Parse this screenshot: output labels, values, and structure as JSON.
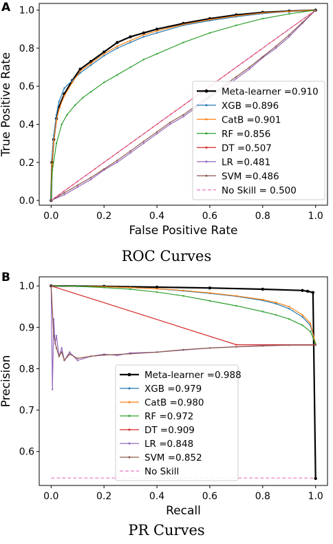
{
  "panels": [
    {
      "letter": "A",
      "caption": "ROC Curves"
    },
    {
      "letter": "B",
      "caption": "PR Curves"
    }
  ],
  "chart_data": [
    {
      "type": "line",
      "xlabel": "False Positive Rate",
      "ylabel": "True Positive Rate",
      "xlim": [
        0,
        1
      ],
      "ylim": [
        0,
        1
      ],
      "xticks": [
        "0.0",
        "0.2",
        "0.4",
        "0.6",
        "0.8",
        "1.0"
      ],
      "yticks": [
        "0.0",
        "0.2",
        "0.4",
        "0.6",
        "0.8",
        "1.0"
      ],
      "grid": false,
      "legend_position": "lower-right",
      "series": [
        {
          "name": "Meta-learner =0.910",
          "color": "#000000",
          "marker": "dot",
          "x": [
            0,
            0.003,
            0.01,
            0.02,
            0.03,
            0.05,
            0.08,
            0.11,
            0.15,
            0.2,
            0.25,
            0.3,
            0.35,
            0.4,
            0.5,
            0.6,
            0.7,
            0.8,
            0.9,
            1.0
          ],
          "y": [
            0,
            0.2,
            0.32,
            0.43,
            0.49,
            0.56,
            0.63,
            0.69,
            0.73,
            0.78,
            0.83,
            0.86,
            0.88,
            0.9,
            0.93,
            0.955,
            0.975,
            0.988,
            0.995,
            1.0
          ]
        },
        {
          "name": "XGB =0.896",
          "color": "#1f77b4",
          "marker": "dot",
          "x": [
            0,
            0.003,
            0.01,
            0.02,
            0.03,
            0.05,
            0.08,
            0.11,
            0.15,
            0.2,
            0.25,
            0.3,
            0.35,
            0.4,
            0.5,
            0.6,
            0.7,
            0.8,
            0.9,
            1.0
          ],
          "y": [
            0,
            0.22,
            0.34,
            0.45,
            0.52,
            0.59,
            0.63,
            0.67,
            0.71,
            0.76,
            0.8,
            0.83,
            0.86,
            0.88,
            0.92,
            0.945,
            0.965,
            0.982,
            0.993,
            1.0
          ]
        },
        {
          "name": "CatB =0.901",
          "color": "#ff7f0e",
          "marker": "dot",
          "x": [
            0,
            0.003,
            0.01,
            0.02,
            0.03,
            0.05,
            0.08,
            0.11,
            0.15,
            0.2,
            0.25,
            0.3,
            0.35,
            0.4,
            0.5,
            0.6,
            0.7,
            0.8,
            0.9,
            1.0
          ],
          "y": [
            0,
            0.19,
            0.31,
            0.42,
            0.48,
            0.55,
            0.62,
            0.68,
            0.72,
            0.77,
            0.81,
            0.84,
            0.87,
            0.89,
            0.925,
            0.95,
            0.97,
            0.985,
            0.994,
            1.0
          ]
        },
        {
          "name": "RF =0.856",
          "color": "#2ca02c",
          "marker": "dot",
          "x": [
            0,
            0.005,
            0.02,
            0.04,
            0.06,
            0.09,
            0.12,
            0.15,
            0.2,
            0.25,
            0.3,
            0.35,
            0.4,
            0.5,
            0.6,
            0.7,
            0.8,
            0.9,
            1.0
          ],
          "y": [
            0,
            0.16,
            0.3,
            0.4,
            0.45,
            0.5,
            0.54,
            0.57,
            0.62,
            0.66,
            0.7,
            0.74,
            0.77,
            0.83,
            0.88,
            0.92,
            0.955,
            0.98,
            1.0
          ]
        },
        {
          "name": "DT =0.507",
          "color": "#d62728",
          "marker": "dot",
          "x": [
            0,
            1.0
          ],
          "y": [
            0,
            1.0
          ]
        },
        {
          "name": "LR =0.481",
          "color": "#9467bd",
          "marker": "dot",
          "x": [
            0,
            0.05,
            0.1,
            0.15,
            0.2,
            0.25,
            0.3,
            0.35,
            0.4,
            0.45,
            0.5,
            0.55,
            0.6,
            0.65,
            0.7,
            0.75,
            0.8,
            0.85,
            0.9,
            0.95,
            1.0
          ],
          "y": [
            0,
            0.03,
            0.07,
            0.11,
            0.16,
            0.2,
            0.25,
            0.3,
            0.35,
            0.4,
            0.44,
            0.49,
            0.54,
            0.59,
            0.64,
            0.69,
            0.75,
            0.8,
            0.86,
            0.93,
            1.0
          ]
        },
        {
          "name": "SVM =0.486",
          "color": "#8c564b",
          "marker": "dot",
          "x": [
            0,
            0.05,
            0.1,
            0.15,
            0.2,
            0.25,
            0.3,
            0.35,
            0.4,
            0.45,
            0.5,
            0.55,
            0.6,
            0.65,
            0.7,
            0.75,
            0.8,
            0.85,
            0.9,
            0.95,
            1.0
          ],
          "y": [
            0,
            0.04,
            0.08,
            0.12,
            0.165,
            0.21,
            0.26,
            0.31,
            0.36,
            0.41,
            0.45,
            0.5,
            0.55,
            0.6,
            0.65,
            0.7,
            0.755,
            0.81,
            0.87,
            0.935,
            1.0
          ]
        },
        {
          "name": "No Skill = 0.500",
          "color": "#e377c2",
          "marker": "none",
          "dashed": true,
          "x": [
            0,
            1.0
          ],
          "y": [
            0,
            1.0
          ]
        }
      ]
    },
    {
      "type": "line",
      "xlabel": "Recall",
      "ylabel": "Precision",
      "xlim": [
        0,
        1
      ],
      "ylim": [
        0.52,
        1.02
      ],
      "xticks": [
        "0.0",
        "0.2",
        "0.4",
        "0.6",
        "0.8",
        "1.0"
      ],
      "yticks": [
        "0.6",
        "0.7",
        "0.8",
        "0.9",
        "1.0"
      ],
      "grid": false,
      "legend_position": "lower-center",
      "series": [
        {
          "name": "Meta-learner =0.988",
          "color": "#000000",
          "marker": "dot",
          "x": [
            0,
            0.2,
            0.4,
            0.6,
            0.8,
            0.95,
            0.97,
            0.99,
            1.0
          ],
          "y": [
            1.0,
            0.999,
            0.997,
            0.995,
            0.992,
            0.989,
            0.987,
            0.984,
            0.535
          ]
        },
        {
          "name": "XGB =0.979",
          "color": "#1f77b4",
          "marker": "dot",
          "x": [
            0,
            0.1,
            0.2,
            0.3,
            0.4,
            0.5,
            0.6,
            0.7,
            0.8,
            0.85,
            0.9,
            0.95,
            0.98,
            1.0
          ],
          "y": [
            1.0,
            0.999,
            0.998,
            0.996,
            0.993,
            0.988,
            0.982,
            0.975,
            0.965,
            0.957,
            0.945,
            0.925,
            0.905,
            0.86
          ]
        },
        {
          "name": "CatB =0.980",
          "color": "#ff7f0e",
          "marker": "dot",
          "x": [
            0,
            0.1,
            0.2,
            0.3,
            0.4,
            0.5,
            0.6,
            0.7,
            0.8,
            0.85,
            0.9,
            0.95,
            0.98,
            1.0
          ],
          "y": [
            1.0,
            0.999,
            0.998,
            0.996,
            0.993,
            0.989,
            0.983,
            0.976,
            0.967,
            0.96,
            0.95,
            0.93,
            0.91,
            0.86
          ]
        },
        {
          "name": "RF =0.972",
          "color": "#2ca02c",
          "marker": "dot",
          "x": [
            0,
            0.1,
            0.2,
            0.3,
            0.4,
            0.5,
            0.6,
            0.7,
            0.8,
            0.85,
            0.9,
            0.95,
            0.98,
            1.0
          ],
          "y": [
            1.0,
            0.999,
            0.996,
            0.992,
            0.985,
            0.976,
            0.964,
            0.952,
            0.938,
            0.93,
            0.92,
            0.905,
            0.89,
            0.86
          ]
        },
        {
          "name": "DT =0.909",
          "color": "#d62728",
          "marker": "dot",
          "x": [
            0,
            0.7,
            1.0
          ],
          "y": [
            1.0,
            0.858,
            0.858
          ]
        },
        {
          "name": "LR =0.848",
          "color": "#9467bd",
          "marker": "dot",
          "x": [
            0,
            0.005,
            0.01,
            0.015,
            0.02,
            0.03,
            0.04,
            0.05,
            0.07,
            0.1,
            0.15,
            0.2,
            0.25,
            0.3,
            0.4,
            0.5,
            0.6,
            0.7,
            0.8,
            0.9,
            1.0
          ],
          "y": [
            1.0,
            0.75,
            0.92,
            0.86,
            0.88,
            0.83,
            0.85,
            0.82,
            0.84,
            0.82,
            0.83,
            0.835,
            0.832,
            0.838,
            0.84,
            0.845,
            0.85,
            0.853,
            0.856,
            0.857,
            0.857
          ]
        },
        {
          "name": "SVM =0.852",
          "color": "#8c564b",
          "marker": "dot",
          "x": [
            0,
            0.01,
            0.02,
            0.03,
            0.04,
            0.05,
            0.07,
            0.1,
            0.15,
            0.2,
            0.3,
            0.4,
            0.5,
            0.6,
            0.7,
            0.8,
            0.9,
            1.0
          ],
          "y": [
            1.0,
            0.88,
            0.85,
            0.83,
            0.84,
            0.82,
            0.835,
            0.825,
            0.83,
            0.833,
            0.836,
            0.84,
            0.846,
            0.85,
            0.853,
            0.855,
            0.857,
            0.857
          ]
        },
        {
          "name": "No Skill",
          "color": "#e377c2",
          "marker": "none",
          "dashed": true,
          "x": [
            0,
            1.0
          ],
          "y": [
            0.536,
            0.536
          ]
        }
      ]
    }
  ]
}
